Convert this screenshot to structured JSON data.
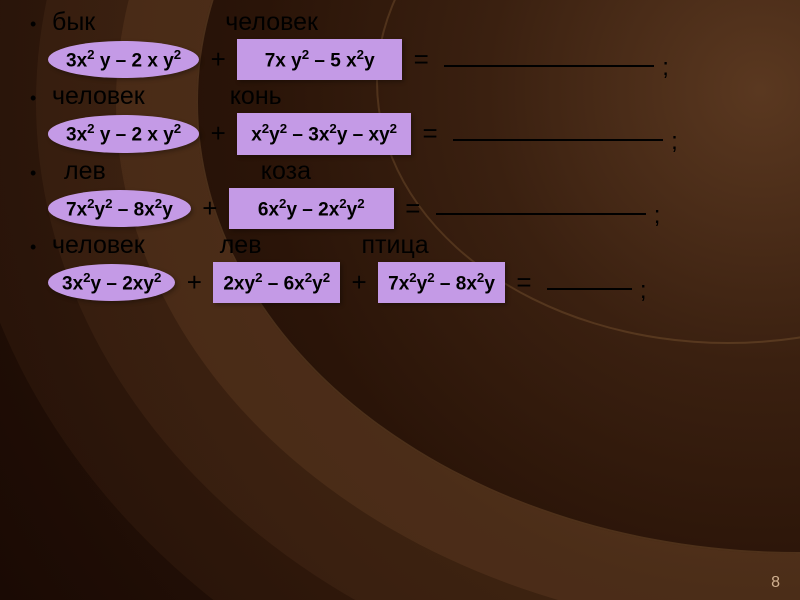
{
  "colors": {
    "shape_fill": "#c49ae6",
    "text": "#000000"
  },
  "page_number": "8",
  "rows": [
    {
      "labels": [
        "бык",
        "человек"
      ],
      "terms": [
        {
          "shape": "oval",
          "text_html": "3x<sup>2</sup> y – 2 x y<sup>2</sup>"
        },
        {
          "shape": "rect",
          "text_html": "7x y<sup>2</sup> – 5 x<sup>2</sup>y"
        }
      ]
    },
    {
      "labels": [
        "человек",
        "конь"
      ],
      "terms": [
        {
          "shape": "oval",
          "text_html": "3x<sup>2</sup> y – 2 x y<sup>2</sup>"
        },
        {
          "shape": "rect",
          "text_html": "x<sup>2</sup>y<sup>2</sup> – 3x<sup>2</sup>y – xy<sup>2</sup>"
        }
      ]
    },
    {
      "labels": [
        "лев",
        "коза"
      ],
      "terms": [
        {
          "shape": "oval",
          "text_html": "7x<sup>2</sup>y<sup>2</sup> – 8x<sup>2</sup>y"
        },
        {
          "shape": "rect",
          "text_html": "6x<sup>2</sup>y – 2x<sup>2</sup>y<sup>2</sup>"
        }
      ]
    },
    {
      "labels": [
        "человек",
        "лев",
        "птица"
      ],
      "terms": [
        {
          "shape": "oval",
          "text_html": "3x<sup>2</sup>y – 2xy<sup>2</sup>"
        },
        {
          "shape": "rect",
          "text_html": "2xy<sup>2</sup> – 6x<sup>2</sup>y<sup>2</sup>"
        },
        {
          "shape": "rect",
          "text_html": "7x<sup>2</sup>y<sup>2</sup> – 8x<sup>2</sup>y"
        }
      ]
    }
  ]
}
